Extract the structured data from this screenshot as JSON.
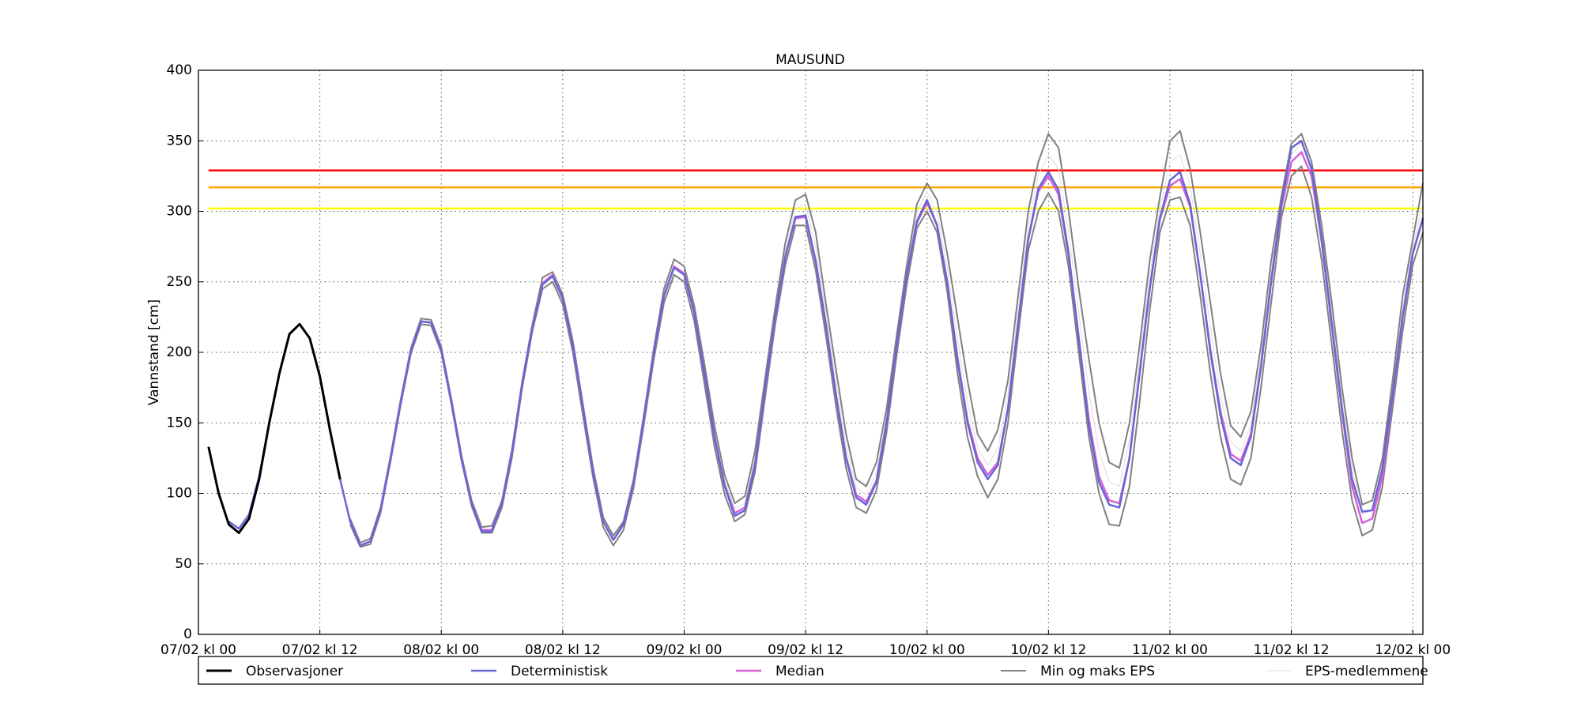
{
  "chart_data": {
    "type": "line",
    "title": "MAUSUND",
    "y_label": "Vannstand [cm]",
    "x": [
      1,
      2,
      3,
      4,
      5,
      6,
      7,
      8,
      9,
      10,
      11,
      12,
      13,
      14,
      15,
      16,
      17,
      18,
      19,
      20,
      21,
      22,
      23,
      24,
      25,
      26,
      27,
      28,
      29,
      30,
      31,
      32,
      33,
      34,
      35,
      36,
      37,
      38,
      39,
      40,
      41,
      42,
      43,
      44,
      45,
      46,
      47,
      48,
      49,
      50,
      51,
      52,
      53,
      54,
      55,
      56,
      57,
      58,
      59,
      60,
      61,
      62,
      63,
      64,
      65,
      66,
      67,
      68,
      69,
      70,
      71,
      72,
      73,
      74,
      75,
      76,
      77,
      78,
      79,
      80,
      81,
      82,
      83,
      84,
      85,
      86,
      87,
      88,
      89,
      90,
      91,
      92,
      93,
      94,
      95,
      96,
      97,
      98,
      99,
      100,
      101,
      102,
      103,
      104,
      105,
      106,
      107,
      108,
      109,
      110,
      111,
      112,
      113,
      114,
      115,
      116,
      117,
      118,
      119,
      120,
      121
    ],
    "xlim": [
      0,
      121
    ],
    "xticks": [
      {
        "value": 0,
        "label": "07/02 kl 00"
      },
      {
        "value": 12,
        "label": "07/02 kl 12"
      },
      {
        "value": 24,
        "label": "08/02 kl 00"
      },
      {
        "value": 36,
        "label": "08/02 kl 12"
      },
      {
        "value": 48,
        "label": "09/02 kl 00"
      },
      {
        "value": 60,
        "label": "09/02 kl 12"
      },
      {
        "value": 72,
        "label": "10/02 kl 00"
      },
      {
        "value": 84,
        "label": "10/02 kl 12"
      },
      {
        "value": 96,
        "label": "11/02 kl 00"
      },
      {
        "value": 108,
        "label": "11/02 kl 12"
      },
      {
        "value": 120,
        "label": "12/02 kl 00"
      }
    ],
    "ylim": [
      0,
      400
    ],
    "yticks": [
      0,
      50,
      100,
      150,
      200,
      250,
      300,
      350,
      400
    ],
    "grid": true,
    "hlines": [
      {
        "value": 329,
        "color": "#ff0000"
      },
      {
        "value": 317,
        "color": "#ffa500"
      },
      {
        "value": 302,
        "color": "#ffff00"
      }
    ],
    "series": [
      {
        "name": "Observasjoner",
        "color": "#000000",
        "width": 3,
        "values": [
          133,
          100,
          78,
          72,
          82,
          110,
          150,
          185,
          213,
          220,
          210,
          183,
          145,
          110,
          null,
          null,
          null,
          null,
          null,
          null,
          null,
          null,
          null,
          null,
          null,
          null,
          null,
          null,
          null,
          null,
          null,
          null,
          null,
          null,
          null,
          null,
          null,
          null,
          null,
          null,
          null,
          null,
          null,
          null,
          null,
          null,
          null,
          null,
          null,
          null,
          null,
          null,
          null,
          null,
          null,
          null,
          null,
          null,
          null,
          null,
          null,
          null,
          null,
          null,
          null,
          null,
          null,
          null,
          null,
          null,
          null,
          null,
          null,
          null,
          null,
          null,
          null,
          null,
          null,
          null,
          null,
          null,
          null,
          null,
          null,
          null,
          null,
          null,
          null,
          null,
          null,
          null,
          null,
          null,
          null,
          null,
          null,
          null,
          null,
          null,
          null,
          null,
          null,
          null,
          null,
          null,
          null,
          null,
          null,
          null,
          null,
          null,
          null,
          null,
          null,
          null,
          null,
          null,
          null,
          null,
          null
        ]
      },
      {
        "name": "Deterministisk",
        "color": "#6666d6",
        "width": 2.5,
        "values": [
          null,
          null,
          80,
          75,
          85,
          112,
          150,
          185,
          213,
          220,
          210,
          183,
          145,
          110,
          80,
          63,
          66,
          88,
          125,
          165,
          201,
          222,
          221,
          202,
          165,
          125,
          93,
          73,
          73,
          93,
          130,
          178,
          218,
          248,
          254,
          238,
          205,
          160,
          115,
          80,
          67,
          78,
          108,
          153,
          200,
          240,
          260,
          255,
          228,
          185,
          140,
          105,
          84,
          88,
          120,
          175,
          225,
          268,
          296,
          297,
          265,
          220,
          170,
          125,
          97,
          92,
          108,
          150,
          205,
          255,
          293,
          308,
          290,
          250,
          195,
          150,
          122,
          110,
          120,
          160,
          220,
          280,
          316,
          328,
          315,
          270,
          210,
          148,
          108,
          92,
          90,
          125,
          185,
          245,
          295,
          322,
          328,
          305,
          255,
          200,
          155,
          125,
          120,
          140,
          190,
          250,
          305,
          345,
          350,
          330,
          280,
          220,
          160,
          110,
          87,
          88,
          118,
          170,
          225,
          270,
          295
        ]
      },
      {
        "name": "Median",
        "color": "#d660d6",
        "width": 2.5,
        "values": [
          null,
          null,
          null,
          null,
          null,
          null,
          null,
          null,
          null,
          null,
          null,
          null,
          null,
          null,
          80,
          63,
          66,
          88,
          125,
          165,
          201,
          222,
          221,
          202,
          165,
          125,
          93,
          74,
          74,
          93,
          130,
          178,
          218,
          249,
          255,
          238,
          205,
          160,
          115,
          80,
          67,
          78,
          108,
          153,
          200,
          240,
          261,
          256,
          229,
          185,
          140,
          106,
          86,
          90,
          121,
          175,
          225,
          268,
          295,
          296,
          264,
          220,
          170,
          126,
          99,
          94,
          109,
          150,
          205,
          254,
          292,
          306,
          290,
          250,
          197,
          152,
          125,
          113,
          122,
          160,
          220,
          280,
          314,
          325,
          312,
          268,
          210,
          152,
          112,
          95,
          93,
          125,
          185,
          245,
          294,
          318,
          323,
          303,
          255,
          202,
          158,
          128,
          123,
          142,
          190,
          250,
          302,
          335,
          342,
          325,
          278,
          218,
          158,
          105,
          79,
          82,
          112,
          168,
          225,
          270,
          295
        ]
      },
      {
        "name": "Min og maks EPS",
        "color": "#808080",
        "width": 2,
        "values": [
          null,
          null,
          null,
          null,
          null,
          null,
          null,
          null,
          null,
          null,
          null,
          null,
          null,
          null,
          82,
          65,
          68,
          90,
          127,
          167,
          203,
          224,
          223,
          204,
          167,
          127,
          95,
          76,
          77,
          95,
          132,
          180,
          220,
          253,
          257,
          241,
          208,
          163,
          118,
          83,
          70,
          80,
          110,
          155,
          203,
          245,
          266,
          261,
          233,
          192,
          148,
          113,
          93,
          98,
          130,
          182,
          232,
          278,
          308,
          312,
          285,
          235,
          188,
          142,
          110,
          105,
          122,
          160,
          212,
          262,
          305,
          320,
          308,
          270,
          225,
          180,
          142,
          130,
          145,
          180,
          240,
          300,
          335,
          355,
          345,
          300,
          245,
          195,
          150,
          122,
          118,
          150,
          205,
          265,
          310,
          350,
          357,
          330,
          285,
          235,
          185,
          148,
          140,
          158,
          205,
          265,
          310,
          348,
          355,
          335,
          290,
          235,
          175,
          125,
          92,
          95,
          125,
          180,
          240,
          280,
          320
        ]
      },
      {
        "color": "#808080",
        "width": 2,
        "values": [
          null,
          null,
          null,
          null,
          null,
          null,
          null,
          null,
          null,
          null,
          null,
          null,
          null,
          null,
          78,
          62,
          64,
          86,
          123,
          163,
          199,
          220,
          219,
          200,
          163,
          123,
          91,
          72,
          72,
          90,
          126,
          175,
          215,
          245,
          250,
          234,
          200,
          155,
          111,
          76,
          63,
          74,
          104,
          148,
          195,
          235,
          255,
          250,
          222,
          178,
          133,
          99,
          80,
          85,
          115,
          168,
          220,
          262,
          290,
          290,
          258,
          212,
          162,
          118,
          90,
          86,
          102,
          143,
          198,
          248,
          288,
          300,
          285,
          243,
          186,
          140,
          112,
          97,
          110,
          150,
          212,
          272,
          300,
          313,
          300,
          260,
          200,
          140,
          100,
          78,
          77,
          105,
          165,
          230,
          285,
          308,
          310,
          290,
          240,
          185,
          140,
          110,
          106,
          125,
          175,
          235,
          295,
          325,
          332,
          310,
          265,
          205,
          145,
          95,
          70,
          74,
          105,
          160,
          215,
          262,
          285
        ]
      },
      {
        "name": "EPS-medlemmene",
        "color": "#dddddd",
        "width": 1,
        "values": [
          null,
          null,
          null,
          null,
          null,
          null,
          null,
          null,
          null,
          null,
          null,
          null,
          null,
          null,
          null,
          null,
          null,
          null,
          null,
          null,
          null,
          null,
          null,
          null,
          null,
          null,
          null,
          null,
          null,
          null,
          null,
          null,
          null,
          null,
          null,
          null,
          null,
          null,
          null,
          null,
          null,
          null,
          null,
          null,
          null,
          null,
          null,
          null,
          null,
          null,
          144,
          109,
          89,
          93,
          125,
          178,
          228,
          273,
          302,
          305,
          275,
          228,
          180,
          134,
          104,
          99,
          115,
          155,
          208,
          258,
          299,
          314,
          299,
          260,
          210,
          165,
          132,
          120,
          132,
          170,
          230,
          290,
          326,
          340,
          330,
          285,
          228,
          172,
          130,
          108,
          105,
          138,
          195,
          255,
          302,
          335,
          340,
          318,
          270,
          218,
          170,
          137,
          130,
          149,
          198,
          258,
          307,
          340,
          348,
          330,
          285,
          228,
          168,
          118,
          85,
          88,
          120,
          175,
          232,
          275,
          305
        ]
      }
    ]
  }
}
